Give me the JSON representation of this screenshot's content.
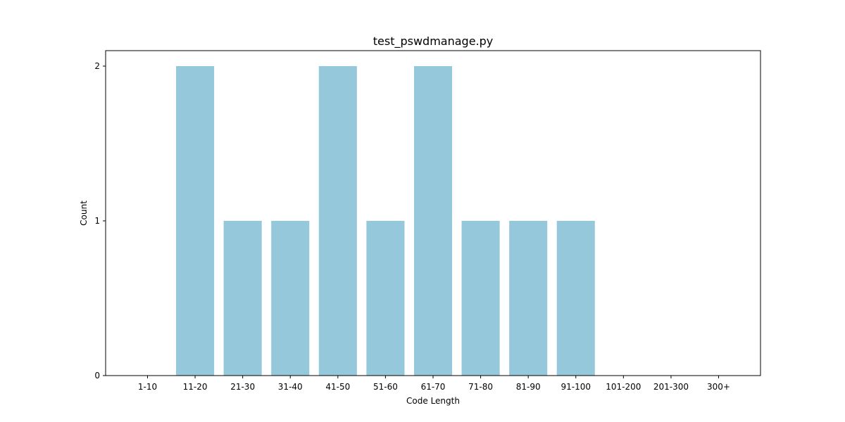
{
  "chart_data": {
    "type": "bar",
    "title": "test_pswdmanage.py",
    "xlabel": "Code Length",
    "ylabel": "Count",
    "categories": [
      "1-10",
      "11-20",
      "21-30",
      "31-40",
      "41-50",
      "51-60",
      "61-70",
      "71-80",
      "81-90",
      "91-100",
      "101-200",
      "201-300",
      "300+"
    ],
    "values": [
      0,
      2,
      1,
      1,
      2,
      1,
      2,
      1,
      1,
      1,
      0,
      0,
      0
    ],
    "ylim": [
      0,
      2.1
    ],
    "yticks": [
      0,
      1,
      2
    ],
    "ytick_labels": [
      "0",
      "1",
      "2"
    ],
    "bar_color": "#96c8dc",
    "grid": false,
    "legend": "none"
  }
}
